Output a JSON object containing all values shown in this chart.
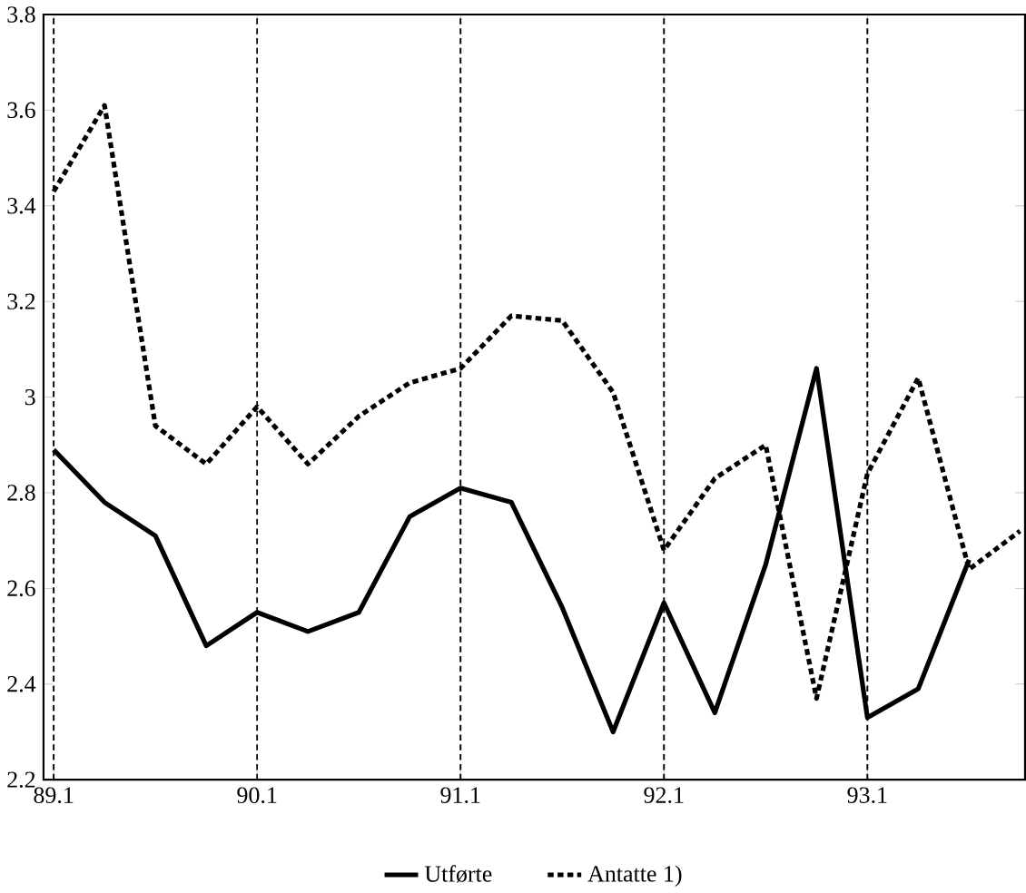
{
  "chart_data": {
    "type": "line",
    "categories": [
      "89.1",
      null,
      null,
      null,
      "90.1",
      null,
      null,
      null,
      "91.1",
      null,
      null,
      null,
      "92.1",
      null,
      null,
      null,
      "93.1",
      null,
      null,
      null
    ],
    "series": [
      {
        "name": "Utførte",
        "color": "#000000",
        "line_style": "solid",
        "values": [
          2.89,
          2.78,
          2.71,
          2.48,
          2.55,
          2.51,
          2.55,
          2.75,
          2.81,
          2.78,
          2.56,
          2.3,
          2.57,
          2.34,
          2.65,
          3.06,
          2.33,
          2.39,
          2.66,
          null
        ]
      },
      {
        "name": "Antatte 1)",
        "color": "#000000",
        "line_style": "dashed",
        "values": [
          3.43,
          3.61,
          2.94,
          2.86,
          2.98,
          2.86,
          2.96,
          3.03,
          3.06,
          3.17,
          3.16,
          3.01,
          2.68,
          2.83,
          2.9,
          2.37,
          2.84,
          3.04,
          2.64,
          2.72
        ]
      }
    ],
    "ylim": [
      2.2,
      3.8
    ],
    "yticks": [
      2.2,
      2.4,
      2.6,
      2.8,
      3,
      3.2,
      3.4,
      3.6,
      3.8
    ],
    "ref_lines": [
      {
        "axis": "x",
        "value": "89.1",
        "color": "#000000",
        "line_style": "dashed"
      },
      {
        "axis": "x",
        "value": "90.1",
        "color": "#000000",
        "line_style": "dashed"
      },
      {
        "axis": "x",
        "value": "91.1",
        "color": "#000000",
        "line_style": "dashed"
      },
      {
        "axis": "x",
        "value": "92.1",
        "color": "#000000",
        "line_style": "dashed"
      },
      {
        "axis": "x",
        "value": "93.1",
        "color": "#000000",
        "line_style": "dashed"
      }
    ],
    "grid": false,
    "legend": "bottom",
    "marker": "none"
  }
}
